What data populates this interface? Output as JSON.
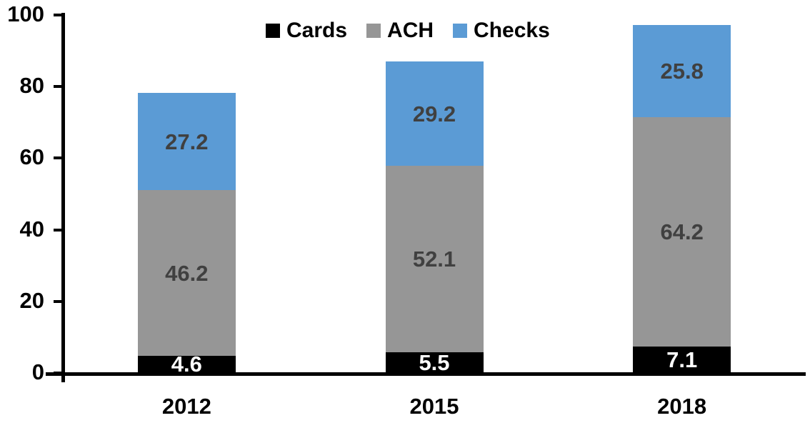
{
  "chart_data": {
    "type": "bar",
    "stacked": true,
    "title": "",
    "categories": [
      "2012",
      "2015",
      "2018"
    ],
    "series": [
      {
        "name": "Cards",
        "color": "#000000",
        "label_color": "#FFFFFF",
        "values": [
          4.6,
          5.5,
          7.1
        ]
      },
      {
        "name": "ACH",
        "color": "#969696",
        "label_color": "#404040",
        "values": [
          46.2,
          52.1,
          64.2
        ]
      },
      {
        "name": "Checks",
        "color": "#5B9BD5",
        "label_color": "#404040",
        "values": [
          27.2,
          29.2,
          25.8
        ]
      }
    ],
    "data_labels": true,
    "value_decimals": 1,
    "xlabel": "",
    "ylabel": "",
    "ylim": [
      0,
      100
    ],
    "yticks": [
      0,
      20,
      40,
      60,
      80,
      100
    ],
    "grid": false,
    "legend_position": "top",
    "axis_color": "#000000"
  }
}
